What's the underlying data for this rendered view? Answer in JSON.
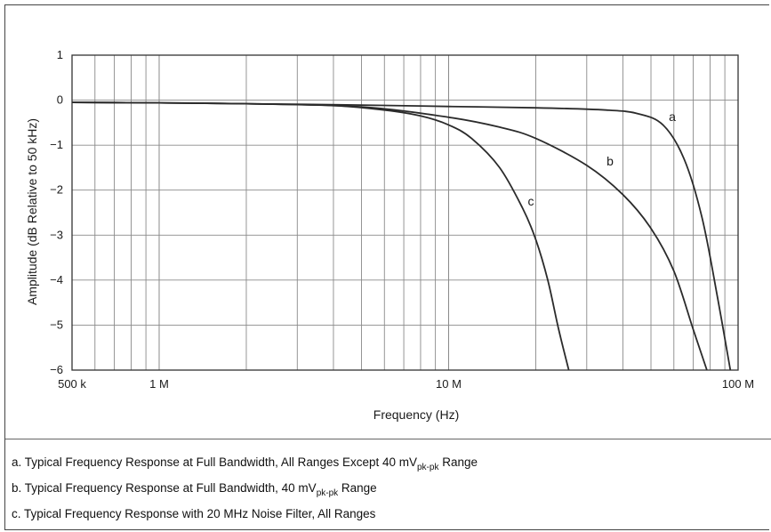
{
  "chart_data": {
    "type": "line",
    "title": "",
    "xlabel": "Frequency (Hz)",
    "ylabel": "Amplitude (dB Relative to 50 kHz)",
    "xscale": "log",
    "xlim": [
      500000,
      100000000
    ],
    "ylim": [
      -6,
      1
    ],
    "grid": true,
    "x_tick_values": [
      500000,
      1000000,
      10000000,
      100000000
    ],
    "x_tick_labels": [
      "500 k",
      "1 M",
      "10 M",
      "100 M"
    ],
    "y_ticks": [
      1,
      0,
      -1,
      -2,
      -3,
      -4,
      -5,
      -6
    ],
    "y_tick_labels": [
      "1",
      "0",
      "−1",
      "−2",
      "−3",
      "−4",
      "−5",
      "−6"
    ],
    "series": [
      {
        "name": "a",
        "x": [
          500000,
          1000000,
          2000000,
          5000000,
          10000000,
          20000000,
          35000000,
          45000000,
          55000000,
          65000000,
          75000000,
          85000000,
          94000000
        ],
        "y": [
          -0.05,
          -0.06,
          -0.08,
          -0.11,
          -0.14,
          -0.17,
          -0.22,
          -0.3,
          -0.55,
          -1.3,
          -2.6,
          -4.4,
          -6.0
        ]
      },
      {
        "name": "b",
        "x": [
          500000,
          1000000,
          2000000,
          5000000,
          10000000,
          15000000,
          20000000,
          30000000,
          40000000,
          50000000,
          60000000,
          70000000,
          78000000
        ],
        "y": [
          -0.05,
          -0.06,
          -0.08,
          -0.15,
          -0.38,
          -0.6,
          -0.85,
          -1.45,
          -2.1,
          -2.85,
          -3.8,
          -5.1,
          -6.0
        ]
      },
      {
        "name": "c",
        "x": [
          500000,
          1000000,
          2000000,
          4000000,
          6000000,
          8000000,
          10000000,
          12000000,
          15000000,
          18000000,
          20000000,
          22000000,
          24000000,
          26000000
        ],
        "y": [
          -0.05,
          -0.06,
          -0.08,
          -0.12,
          -0.22,
          -0.35,
          -0.55,
          -0.85,
          -1.5,
          -2.4,
          -3.1,
          -4.0,
          -5.1,
          -6.0
        ]
      }
    ]
  },
  "captions": {
    "a_main": "a. Typical Frequency Response at Full Bandwidth, All Ranges Except 40 mV",
    "a_sub": "pk-pk",
    "a_tail": " Range",
    "b_main": "b. Typical Frequency Response at Full Bandwidth, 40 mV",
    "b_sub": "pk-pk",
    "b_tail": " Range",
    "c_main": "c. Typical Frequency Response with 20 MHz Noise Filter, All Ranges"
  }
}
